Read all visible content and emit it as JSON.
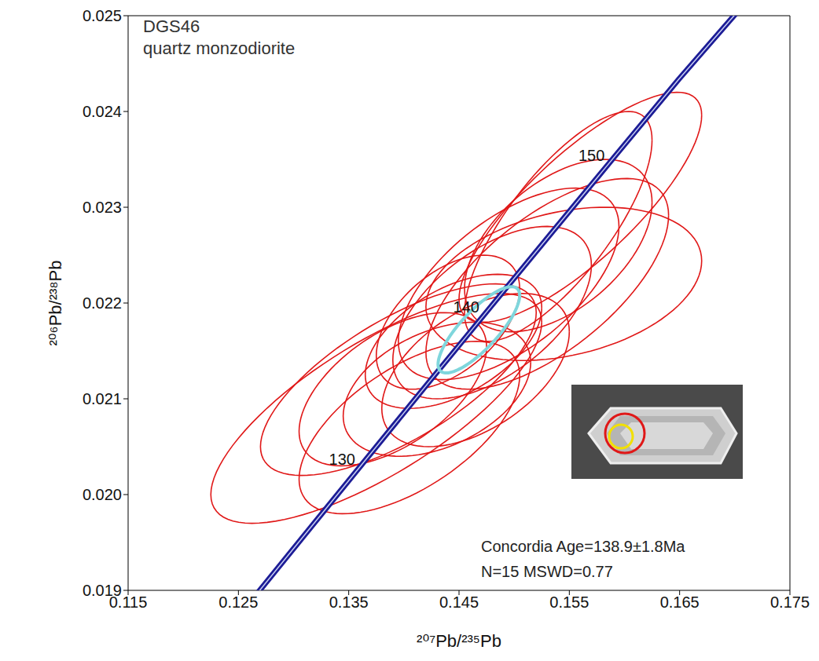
{
  "chart_data": {
    "type": "scatter",
    "title": "DGS46",
    "subtitle": "quartz monzodiorite",
    "x_label": "²⁰⁷Pb/²³⁵Pb",
    "y_label": "²⁰⁶Pb/²³⁸Pb",
    "xlim": [
      0.115,
      0.175
    ],
    "ylim": [
      0.019,
      0.025
    ],
    "xticks": [
      0.115,
      0.125,
      0.135,
      0.145,
      0.155,
      0.165,
      0.175
    ],
    "yticks": [
      0.019,
      {
        "value": 0.02,
        "label": "0.020"
      },
      0.021,
      0.022,
      0.023,
      0.024,
      0.025
    ],
    "ellipses": {
      "color": "#e01818",
      "items": [
        {
          "x": 0.1375,
          "y": 0.0209,
          "sx": 0.015,
          "sy": 0.0012,
          "rho": 0.75
        },
        {
          "x": 0.1395,
          "y": 0.0212,
          "sx": 0.0125,
          "sy": 0.001,
          "rho": 0.7
        },
        {
          "x": 0.1405,
          "y": 0.0207,
          "sx": 0.01,
          "sy": 0.0009,
          "rho": 0.6
        },
        {
          "x": 0.139,
          "y": 0.0211,
          "sx": 0.0085,
          "sy": 0.0008,
          "rho": 0.55
        },
        {
          "x": 0.143,
          "y": 0.0211,
          "sx": 0.0085,
          "sy": 0.0007,
          "rho": 0.4
        },
        {
          "x": 0.1465,
          "y": 0.0213,
          "sx": 0.0085,
          "sy": 0.0008,
          "rho": 0.5
        },
        {
          "x": 0.144,
          "y": 0.0218,
          "sx": 0.0065,
          "sy": 0.0007,
          "rho": 0.5
        },
        {
          "x": 0.1445,
          "y": 0.0216,
          "sx": 0.008,
          "sy": 0.0007,
          "rho": 0.5
        },
        {
          "x": 0.148,
          "y": 0.0219,
          "sx": 0.009,
          "sy": 0.0009,
          "rho": 0.55
        },
        {
          "x": 0.1495,
          "y": 0.0222,
          "sx": 0.01,
          "sy": 0.001,
          "rho": 0.6
        },
        {
          "x": 0.153,
          "y": 0.0222,
          "sx": 0.011,
          "sy": 0.0011,
          "rho": 0.65
        },
        {
          "x": 0.1545,
          "y": 0.0222,
          "sx": 0.0125,
          "sy": 0.0008,
          "rho": 0.3
        },
        {
          "x": 0.154,
          "y": 0.0226,
          "sx": 0.0085,
          "sy": 0.0009,
          "rho": 0.5
        },
        {
          "x": 0.154,
          "y": 0.0228,
          "sx": 0.0085,
          "sy": 0.0012,
          "rho": 0.75
        },
        {
          "x": 0.156,
          "y": 0.023,
          "sx": 0.011,
          "sy": 0.0012,
          "rho": 0.8
        }
      ]
    },
    "mean_ellipse": {
      "x": 0.1468,
      "y": 0.02172,
      "sx": 0.0037,
      "sy": 0.00045,
      "rho": 0.8,
      "color": "#7fd6dc"
    },
    "concordia": {
      "color": "#1c1c96",
      "x": [
        0.12545,
        0.13101,
        0.13659,
        0.14219,
        0.14784,
        0.1535,
        0.1592,
        0.16492,
        0.17092
      ],
      "y": [
        0.018789,
        0.01958,
        0.020371,
        0.021163,
        0.021956,
        0.022748,
        0.023542,
        0.024336,
        0.025131
      ],
      "age_labels": [
        {
          "value": 130,
          "x": 0.13659,
          "y": 0.020371
        },
        {
          "value": 140,
          "x": 0.14784,
          "y": 0.021956
        },
        {
          "value": 150,
          "x": 0.1592,
          "y": 0.023542
        }
      ]
    },
    "annotations": [
      "Concordia Age=138.9±1.8Ma",
      "N=15 MSWD=0.77"
    ]
  }
}
